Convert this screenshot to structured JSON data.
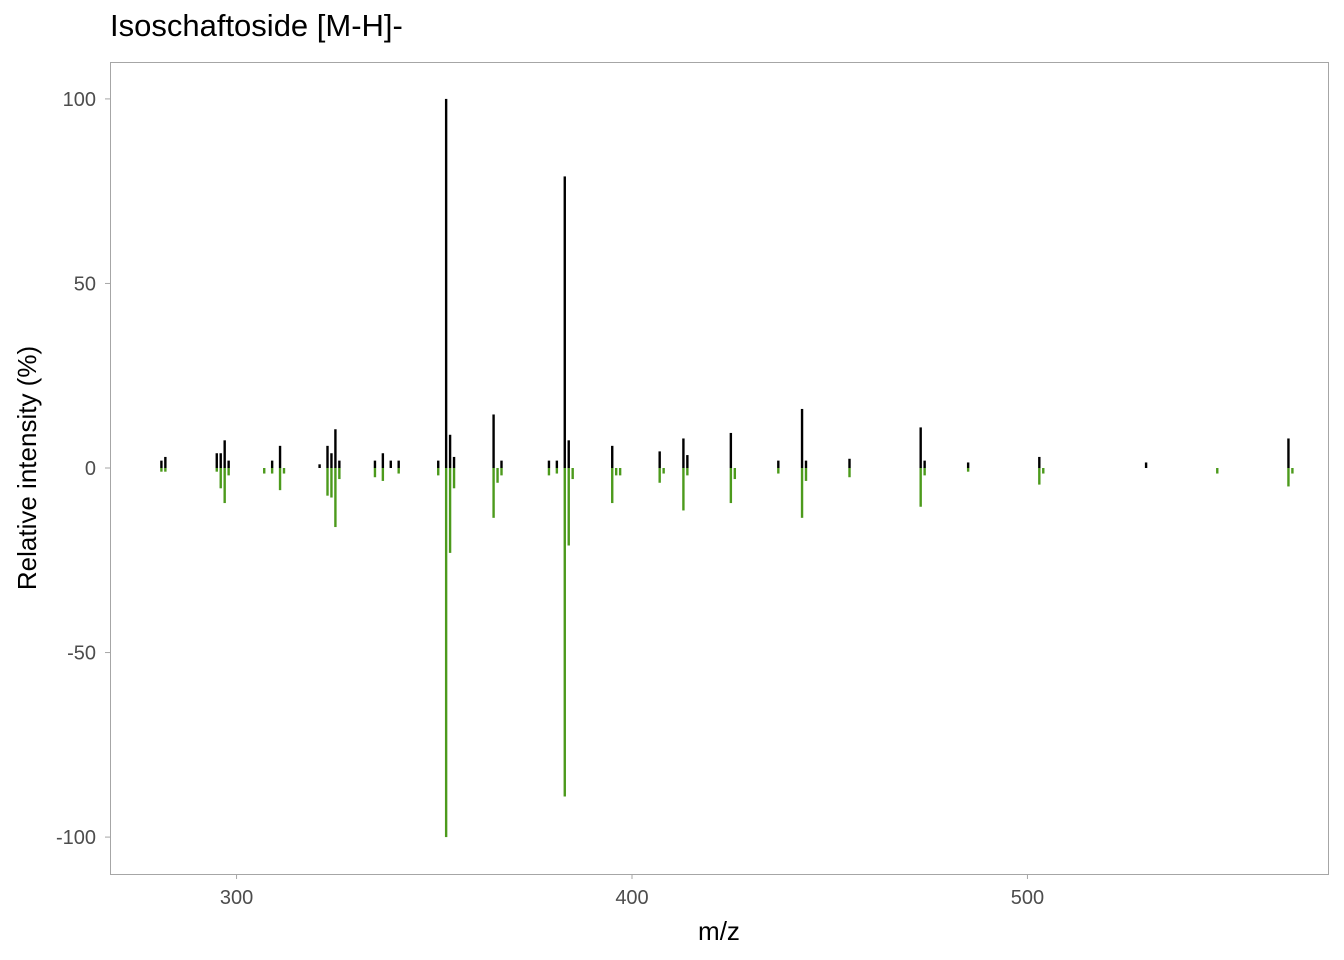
{
  "chart_data": {
    "type": "bar",
    "title": "Isoschaftoside [M-H]-",
    "xlabel": "m/z",
    "ylabel": "Relative intensity (%)",
    "xlim": [
      268,
      576
    ],
    "ylim": [
      -110,
      110
    ],
    "xticks": [
      300,
      400,
      500
    ],
    "yticks": [
      100,
      50,
      0,
      -50,
      -100
    ],
    "grid": false,
    "colors": {
      "top": "#000000",
      "bottom": "#4c9a1c",
      "panel_border": "#a6a6a6",
      "tick_text": "#4d4d4d"
    },
    "series": [
      {
        "name": "",
        "direction": "up",
        "points": [
          [
            281.0,
            2
          ],
          [
            282.0,
            3
          ],
          [
            295.0,
            4
          ],
          [
            296.0,
            4
          ],
          [
            297.0,
            7.5
          ],
          [
            298.0,
            2
          ],
          [
            309.0,
            2
          ],
          [
            311.0,
            6
          ],
          [
            321.0,
            1
          ],
          [
            323.0,
            6
          ],
          [
            324.0,
            4
          ],
          [
            325.0,
            10.5
          ],
          [
            326.0,
            2
          ],
          [
            335.0,
            2
          ],
          [
            337.0,
            4
          ],
          [
            339.0,
            2
          ],
          [
            341.0,
            2
          ],
          [
            351.0,
            2
          ],
          [
            353.0,
            100
          ],
          [
            354.0,
            9
          ],
          [
            355.0,
            3
          ],
          [
            365.0,
            14.5
          ],
          [
            367.0,
            2
          ],
          [
            379.0,
            2
          ],
          [
            381.0,
            2
          ],
          [
            383.0,
            79
          ],
          [
            384.0,
            7.5
          ],
          [
            395.0,
            6
          ],
          [
            407.0,
            4.5
          ],
          [
            413.0,
            8
          ],
          [
            414.0,
            3.5
          ],
          [
            425.0,
            9.5
          ],
          [
            437.0,
            2
          ],
          [
            443.0,
            16
          ],
          [
            444.0,
            2
          ],
          [
            455.0,
            2.5
          ],
          [
            473.0,
            11
          ],
          [
            474.0,
            2
          ],
          [
            485.0,
            1.5
          ],
          [
            503.0,
            3
          ],
          [
            530.0,
            1.5
          ],
          [
            566.0,
            8
          ]
        ]
      },
      {
        "name": "",
        "direction": "down",
        "points": [
          [
            281.0,
            1
          ],
          [
            282.0,
            1
          ],
          [
            295.0,
            1
          ],
          [
            296.0,
            5.5
          ],
          [
            297.0,
            9.5
          ],
          [
            298.0,
            2
          ],
          [
            307.0,
            1.5
          ],
          [
            309.0,
            1.5
          ],
          [
            311.0,
            6
          ],
          [
            312.0,
            1.5
          ],
          [
            323.0,
            7.5
          ],
          [
            324.0,
            8
          ],
          [
            325.0,
            16
          ],
          [
            326.0,
            3
          ],
          [
            335.0,
            2.5
          ],
          [
            337.0,
            3.5
          ],
          [
            341.0,
            1.5
          ],
          [
            351.0,
            2
          ],
          [
            353.0,
            100
          ],
          [
            354.0,
            23
          ],
          [
            355.0,
            5.5
          ],
          [
            365.0,
            13.5
          ],
          [
            366.0,
            4
          ],
          [
            367.0,
            2
          ],
          [
            379.0,
            2
          ],
          [
            381.0,
            1.5
          ],
          [
            383.0,
            89
          ],
          [
            384.0,
            21
          ],
          [
            385.0,
            3
          ],
          [
            395.0,
            9.5
          ],
          [
            396.0,
            2
          ],
          [
            397.0,
            2
          ],
          [
            407.0,
            4
          ],
          [
            408.0,
            1.5
          ],
          [
            413.0,
            11.5
          ],
          [
            414.0,
            2
          ],
          [
            425.0,
            9.5
          ],
          [
            426.0,
            3
          ],
          [
            437.0,
            1.5
          ],
          [
            443.0,
            13.5
          ],
          [
            444.0,
            3.5
          ],
          [
            455.0,
            2.5
          ],
          [
            473.0,
            10.5
          ],
          [
            474.0,
            2
          ],
          [
            485.0,
            1
          ],
          [
            503.0,
            4.5
          ],
          [
            504.0,
            1.5
          ],
          [
            548.0,
            1.5
          ],
          [
            566.0,
            5
          ],
          [
            567.0,
            1.5
          ]
        ]
      }
    ]
  }
}
